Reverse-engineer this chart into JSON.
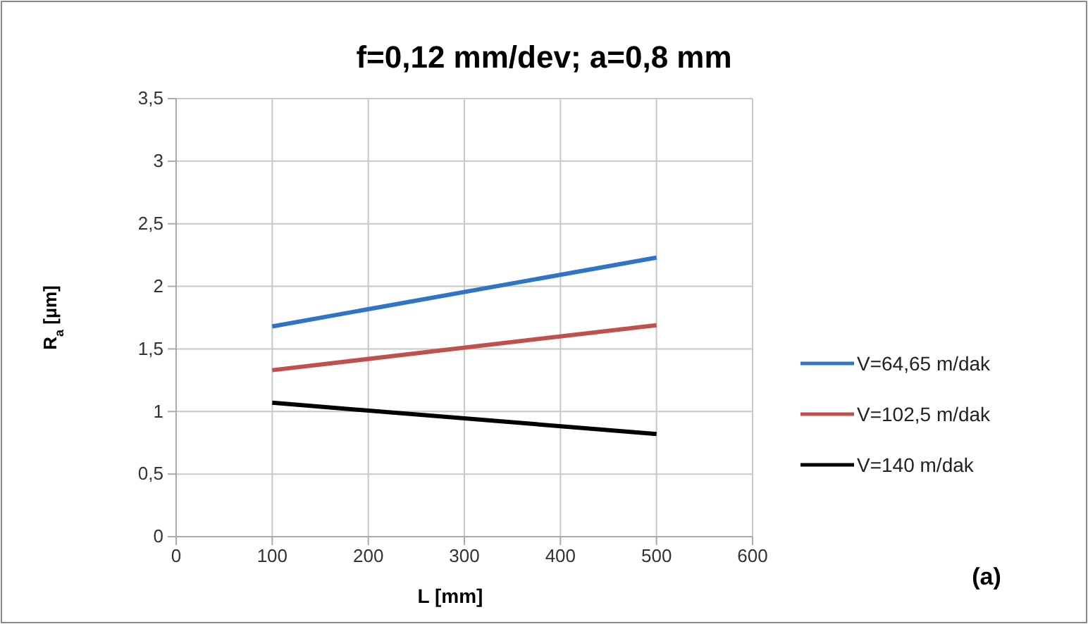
{
  "chart_data": {
    "type": "line",
    "title": "f=0,12 mm/dev; a=0,8 mm",
    "xlabel": "L [mm]",
    "ylabel": "R$_{a}$ [µm]",
    "x": [
      100,
      500
    ],
    "series": [
      {
        "name": "V=64,65 m/dak",
        "color": "#2e75c6",
        "values": [
          1.68,
          2.23
        ]
      },
      {
        "name": "V=102,5 m/dak",
        "color": "#c0504d",
        "values": [
          1.33,
          1.69
        ]
      },
      {
        "name": "V=140 m/dak",
        "color": "#000000",
        "values": [
          1.07,
          0.82
        ]
      }
    ],
    "xlim": [
      0,
      600
    ],
    "xticks": [
      0,
      100,
      200,
      300,
      400,
      500,
      600
    ],
    "ylim": [
      0,
      3.5
    ],
    "yticks": [
      0,
      {
        "value": 0.5,
        "label": "0,5"
      },
      1,
      {
        "value": 1.5,
        "label": "1,5"
      },
      2,
      {
        "value": 2.5,
        "label": "2,5"
      },
      3,
      {
        "value": 3.5,
        "label": "3,5"
      }
    ],
    "grid": true,
    "legend": "right",
    "marker": "none",
    "line_style": "solid",
    "annotations": [
      "(a)"
    ]
  }
}
